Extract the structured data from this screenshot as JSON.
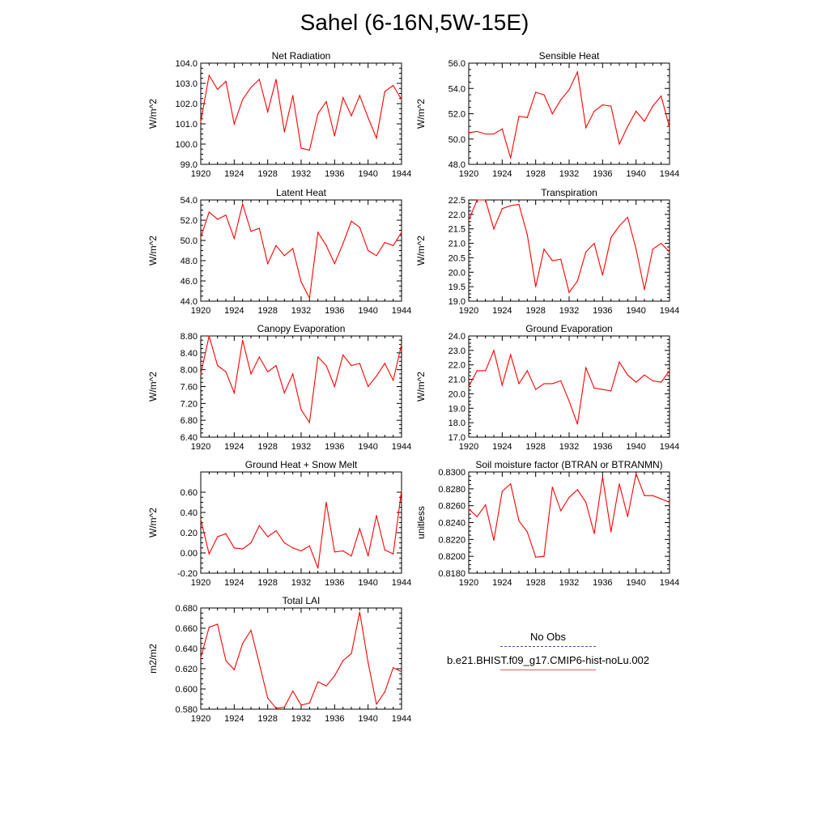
{
  "title": "Sahel (6-16N,5W-15E)",
  "colors": {
    "series": "#ff0000",
    "obs": "#4a4a9a",
    "axis": "#000000"
  },
  "legend": {
    "obs_label": "No Obs",
    "model_label": "b.e21.BHIST.f09_g17.CMIP6-hist-noLu.002"
  },
  "chart_data": [
    {
      "type": "line",
      "title": "Net Radiation",
      "ylabel": "W/m^2",
      "xlim": [
        1920,
        1944
      ],
      "ylim": [
        99.0,
        104.0
      ],
      "x_ticks": [
        "1920",
        "1924",
        "1928",
        "1932",
        "1936",
        "1940",
        "1944"
      ],
      "y_ticks": [
        "99.0",
        "100.0",
        "101.0",
        "102.0",
        "103.0",
        "104.0"
      ],
      "x": [
        1920,
        1921,
        1922,
        1923,
        1924,
        1925,
        1926,
        1927,
        1928,
        1929,
        1930,
        1931,
        1932,
        1933,
        1934,
        1935,
        1936,
        1937,
        1938,
        1939,
        1940,
        1941,
        1942,
        1943,
        1944
      ],
      "values": [
        101.1,
        103.4,
        102.7,
        103.1,
        101.0,
        102.2,
        102.8,
        103.2,
        101.6,
        103.2,
        100.6,
        102.4,
        99.8,
        99.7,
        101.5,
        102.1,
        100.4,
        102.3,
        101.4,
        102.4,
        101.3,
        100.3,
        102.6,
        102.9,
        102.2
      ]
    },
    {
      "type": "line",
      "title": "Sensible Heat",
      "ylabel": "W/m^2",
      "xlim": [
        1920,
        1944
      ],
      "ylim": [
        48.0,
        56.0
      ],
      "x_ticks": [
        "1920",
        "1924",
        "1928",
        "1932",
        "1936",
        "1940",
        "1944"
      ],
      "y_ticks": [
        "48.0",
        "50.0",
        "52.0",
        "54.0",
        "56.0"
      ],
      "x": [
        1920,
        1921,
        1922,
        1923,
        1924,
        1925,
        1926,
        1927,
        1928,
        1929,
        1930,
        1931,
        1932,
        1933,
        1934,
        1935,
        1936,
        1937,
        1938,
        1939,
        1940,
        1941,
        1942,
        1943,
        1944
      ],
      "values": [
        50.5,
        50.6,
        50.4,
        50.4,
        50.8,
        48.5,
        51.8,
        51.7,
        53.7,
        53.5,
        52.0,
        53.1,
        53.9,
        55.3,
        50.9,
        52.2,
        52.7,
        52.6,
        49.6,
        51.0,
        52.2,
        51.4,
        52.6,
        53.4,
        50.9
      ]
    },
    {
      "type": "line",
      "title": "Latent Heat",
      "ylabel": "W/m^2",
      "xlim": [
        1920,
        1944
      ],
      "ylim": [
        44.0,
        54.0
      ],
      "x_ticks": [
        "1920",
        "1924",
        "1928",
        "1932",
        "1936",
        "1940",
        "1944"
      ],
      "y_ticks": [
        "44.0",
        "46.0",
        "48.0",
        "50.0",
        "52.0",
        "54.0"
      ],
      "x": [
        1920,
        1921,
        1922,
        1923,
        1924,
        1925,
        1926,
        1927,
        1928,
        1929,
        1930,
        1931,
        1932,
        1933,
        1934,
        1935,
        1936,
        1937,
        1938,
        1939,
        1940,
        1941,
        1942,
        1943,
        1944
      ],
      "values": [
        50.3,
        52.8,
        52.1,
        52.5,
        50.2,
        53.6,
        50.9,
        51.2,
        47.7,
        49.5,
        48.5,
        49.2,
        45.9,
        44.3,
        50.8,
        49.5,
        47.7,
        49.7,
        51.9,
        51.3,
        49.0,
        48.5,
        49.8,
        49.5,
        50.8
      ]
    },
    {
      "type": "line",
      "title": "Transpiration",
      "ylabel": "W/m^2",
      "xlim": [
        1920,
        1944
      ],
      "ylim": [
        19.0,
        22.5
      ],
      "x_ticks": [
        "1920",
        "1924",
        "1928",
        "1932",
        "1936",
        "1940",
        "1944"
      ],
      "y_ticks": [
        "19.0",
        "19.5",
        "20.0",
        "20.5",
        "21.0",
        "21.5",
        "22.0",
        "22.5"
      ],
      "x": [
        1920,
        1921,
        1922,
        1923,
        1924,
        1925,
        1926,
        1927,
        1928,
        1929,
        1930,
        1931,
        1932,
        1933,
        1934,
        1935,
        1936,
        1937,
        1938,
        1939,
        1940,
        1941,
        1942,
        1943,
        1944
      ],
      "values": [
        21.8,
        22.5,
        22.5,
        21.5,
        22.2,
        22.3,
        22.35,
        21.3,
        19.5,
        20.8,
        20.4,
        20.45,
        19.3,
        19.7,
        20.7,
        21.0,
        19.9,
        21.2,
        21.6,
        21.9,
        20.8,
        19.4,
        20.8,
        21.0,
        20.7
      ]
    },
    {
      "type": "line",
      "title": "Canopy Evaporation",
      "ylabel": "W/m^2",
      "xlim": [
        1920,
        1944
      ],
      "ylim": [
        6.4,
        8.8
      ],
      "x_ticks": [
        "1920",
        "1924",
        "1928",
        "1932",
        "1936",
        "1940",
        "1944"
      ],
      "y_ticks": [
        "6.40",
        "6.80",
        "7.20",
        "7.60",
        "8.00",
        "8.40",
        "8.80"
      ],
      "x": [
        1920,
        1921,
        1922,
        1923,
        1924,
        1925,
        1926,
        1927,
        1928,
        1929,
        1930,
        1931,
        1932,
        1933,
        1934,
        1935,
        1936,
        1937,
        1938,
        1939,
        1940,
        1941,
        1942,
        1943,
        1944
      ],
      "values": [
        7.9,
        8.8,
        8.1,
        7.95,
        7.45,
        8.7,
        7.9,
        8.3,
        7.95,
        8.1,
        7.45,
        7.9,
        7.05,
        6.75,
        8.3,
        8.1,
        7.6,
        8.35,
        8.1,
        8.15,
        7.6,
        7.85,
        8.15,
        7.75,
        8.6
      ]
    },
    {
      "type": "line",
      "title": "Ground Evaporation",
      "ylabel": "W/m^2",
      "xlim": [
        1920,
        1944
      ],
      "ylim": [
        17.0,
        24.0
      ],
      "x_ticks": [
        "1920",
        "1924",
        "1928",
        "1932",
        "1936",
        "1940",
        "1944"
      ],
      "y_ticks": [
        "17.0",
        "18.0",
        "19.0",
        "20.0",
        "21.0",
        "22.0",
        "23.0",
        "24.0"
      ],
      "x": [
        1920,
        1921,
        1922,
        1923,
        1924,
        1925,
        1926,
        1927,
        1928,
        1929,
        1930,
        1931,
        1932,
        1933,
        1934,
        1935,
        1936,
        1937,
        1938,
        1939,
        1940,
        1941,
        1942,
        1943,
        1944
      ],
      "values": [
        20.5,
        21.6,
        21.6,
        23.0,
        20.6,
        22.7,
        20.7,
        21.6,
        20.3,
        20.7,
        20.7,
        20.9,
        19.5,
        17.9,
        21.8,
        20.4,
        20.3,
        20.2,
        22.2,
        21.3,
        20.8,
        21.3,
        20.9,
        20.8,
        21.6
      ]
    },
    {
      "type": "line",
      "title": "Ground Heat + Snow Melt",
      "ylabel": "W/m^2",
      "xlim": [
        1920,
        1944
      ],
      "ylim": [
        -0.2,
        0.8
      ],
      "x_ticks": [
        "1920",
        "1924",
        "1928",
        "1932",
        "1936",
        "1940",
        "1944"
      ],
      "y_ticks": [
        "-0.20",
        "0.00",
        "0.20",
        "0.40",
        "0.60"
      ],
      "x": [
        1920,
        1921,
        1922,
        1923,
        1924,
        1925,
        1926,
        1927,
        1928,
        1929,
        1930,
        1931,
        1932,
        1933,
        1934,
        1935,
        1936,
        1937,
        1938,
        1939,
        1940,
        1941,
        1942,
        1943,
        1944
      ],
      "values": [
        0.33,
        -0.01,
        0.16,
        0.19,
        0.05,
        0.04,
        0.1,
        0.27,
        0.16,
        0.22,
        0.1,
        0.05,
        0.02,
        0.07,
        -0.15,
        0.5,
        0.01,
        0.02,
        -0.03,
        0.24,
        -0.03,
        0.37,
        0.03,
        -0.01,
        0.62
      ]
    },
    {
      "type": "line",
      "title": "Soil moisture factor (BTRAN or BTRANMN)",
      "ylabel": "unitless",
      "xlim": [
        1920,
        1944
      ],
      "ylim": [
        0.818,
        0.83
      ],
      "x_ticks": [
        "1920",
        "1924",
        "1928",
        "1932",
        "1936",
        "1940",
        "1944"
      ],
      "y_ticks": [
        "0.8180",
        "0.8200",
        "0.8220",
        "0.8240",
        "0.8260",
        "0.8280",
        "0.8300"
      ],
      "x": [
        1920,
        1921,
        1922,
        1923,
        1924,
        1925,
        1926,
        1927,
        1928,
        1929,
        1930,
        1931,
        1932,
        1933,
        1934,
        1935,
        1936,
        1937,
        1938,
        1939,
        1940,
        1941,
        1942,
        1943,
        1944
      ],
      "values": [
        0.8256,
        0.8247,
        0.8261,
        0.8219,
        0.8277,
        0.8286,
        0.8242,
        0.8229,
        0.8199,
        0.82,
        0.8282,
        0.8254,
        0.827,
        0.8279,
        0.8264,
        0.8227,
        0.8294,
        0.8229,
        0.8286,
        0.8247,
        0.8298,
        0.8272,
        0.8272,
        0.8268,
        0.8264
      ]
    },
    {
      "type": "line",
      "title": "Total LAI",
      "ylabel": "m2/m2",
      "xlim": [
        1920,
        1944
      ],
      "ylim": [
        0.58,
        0.68
      ],
      "x_ticks": [
        "1920",
        "1924",
        "1928",
        "1932",
        "1936",
        "1940",
        "1944"
      ],
      "y_ticks": [
        "0.580",
        "0.600",
        "0.620",
        "0.640",
        "0.660",
        "0.680"
      ],
      "x": [
        1920,
        1921,
        1922,
        1923,
        1924,
        1925,
        1926,
        1927,
        1928,
        1929,
        1930,
        1931,
        1932,
        1933,
        1934,
        1935,
        1936,
        1937,
        1938,
        1939,
        1940,
        1941,
        1942,
        1943,
        1944
      ],
      "values": [
        0.631,
        0.661,
        0.664,
        0.628,
        0.619,
        0.645,
        0.658,
        0.625,
        0.591,
        0.581,
        0.582,
        0.598,
        0.584,
        0.586,
        0.607,
        0.603,
        0.613,
        0.628,
        0.635,
        0.676,
        0.626,
        0.585,
        0.597,
        0.621,
        0.617
      ]
    }
  ]
}
